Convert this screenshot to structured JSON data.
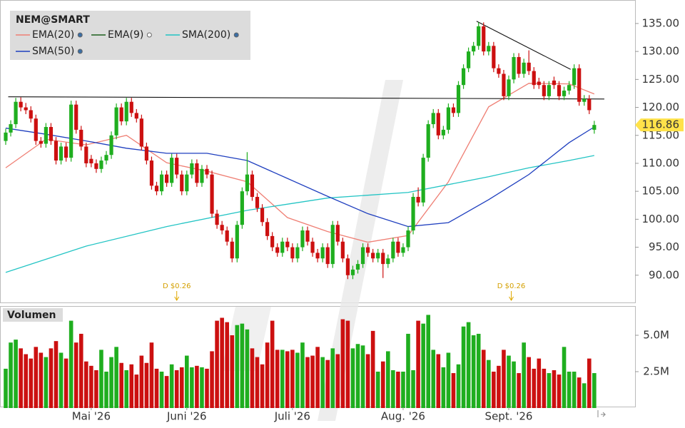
{
  "chart_data": {
    "type": "candlestick",
    "title": "NEM@SMART",
    "up_color": "#1fae1f",
    "down_color": "#cc1010",
    "ylim": [
      85,
      139.2
    ],
    "yticks": [
      {
        "value": 90,
        "label": "90.00"
      },
      {
        "value": 95,
        "label": "95.00"
      },
      {
        "value": 100,
        "label": "100.00"
      },
      {
        "value": 105,
        "label": "105.00"
      },
      {
        "value": 110,
        "label": "110.00"
      },
      {
        "value": 115,
        "label": "115.00"
      },
      {
        "value": 120,
        "label": "120.00"
      },
      {
        "value": 125,
        "label": "125.00"
      },
      {
        "value": 130,
        "label": "130.00"
      },
      {
        "value": 135,
        "label": "135.00"
      }
    ],
    "xlim": [
      -1.1,
      125
    ],
    "xticks": [
      {
        "value": 17,
        "label": "Mai '26"
      },
      {
        "value": 36,
        "label": "Juni '26"
      },
      {
        "value": 57,
        "label": "Juli '26"
      },
      {
        "value": 79,
        "label": "Aug. '26"
      },
      {
        "value": 100,
        "label": "Sept. '26"
      }
    ],
    "last_price": {
      "value": 116.86,
      "label": "116.86"
    },
    "ohlc": [
      [
        114,
        116.2,
        113.3,
        115.5
      ],
      [
        115.5,
        117.7,
        114.8,
        117
      ],
      [
        117,
        121.7,
        116.3,
        121
      ],
      [
        121,
        121.8,
        119.3,
        120
      ],
      [
        120,
        120.8,
        118.8,
        119.5
      ],
      [
        119.5,
        120.2,
        117.3,
        118
      ],
      [
        118,
        118.7,
        113.3,
        114
      ],
      [
        114,
        114.7,
        112.8,
        113.5
      ],
      [
        113.5,
        117.2,
        112.8,
        116.5
      ],
      [
        116.5,
        117.2,
        113.3,
        114
      ],
      [
        114,
        114.7,
        109.8,
        110.5
      ],
      [
        110.5,
        113.7,
        109.8,
        113
      ],
      [
        113,
        113.7,
        110.3,
        111
      ],
      [
        111,
        121.2,
        110.3,
        120.5
      ],
      [
        120.5,
        121.2,
        115.3,
        116
      ],
      [
        116,
        116.7,
        112.3,
        113
      ],
      [
        113,
        113.7,
        109.3,
        110
      ],
      [
        110.8,
        111.5,
        109.3,
        110
      ],
      [
        110,
        110.7,
        108.3,
        109
      ],
      [
        109,
        111.2,
        108.3,
        110.5
      ],
      [
        110.5,
        112.2,
        109.8,
        111.5
      ],
      [
        111.5,
        115.7,
        110.8,
        115
      ],
      [
        115,
        120.7,
        114.3,
        120
      ],
      [
        120,
        120.7,
        116.8,
        117.5
      ],
      [
        117.5,
        121.7,
        116.8,
        121
      ],
      [
        121,
        121.7,
        118.3,
        119
      ],
      [
        119,
        119.7,
        117.3,
        118
      ],
      [
        118,
        118.7,
        112.3,
        113
      ],
      [
        113,
        113.7,
        109.8,
        110.5
      ],
      [
        110.5,
        111.2,
        105.3,
        106
      ],
      [
        106,
        106.7,
        104.3,
        105
      ],
      [
        105,
        108.7,
        104.3,
        108
      ],
      [
        108,
        108.7,
        105.8,
        106.5
      ],
      [
        106.5,
        111.7,
        105.8,
        111
      ],
      [
        111,
        111.7,
        107.3,
        108
      ],
      [
        108,
        108.7,
        104.3,
        105
      ],
      [
        105,
        108.7,
        104.3,
        108
      ],
      [
        108,
        110.7,
        107.3,
        110
      ],
      [
        110,
        110.7,
        105.8,
        106.5
      ],
      [
        106.5,
        109.7,
        105.8,
        109
      ],
      [
        109,
        109.7,
        107.3,
        108
      ],
      [
        108,
        108.7,
        100.3,
        101
      ],
      [
        101,
        101.7,
        98.3,
        99
      ],
      [
        99,
        99.7,
        97.3,
        98
      ],
      [
        98,
        98.7,
        95.3,
        96
      ],
      [
        96,
        96.7,
        92.3,
        93
      ],
      [
        93,
        99.7,
        92.3,
        99
      ],
      [
        99,
        105.7,
        98.3,
        105
      ],
      [
        105,
        112,
        104.3,
        108
      ],
      [
        108,
        108.7,
        103.3,
        104
      ],
      [
        104,
        104.7,
        101.3,
        102
      ],
      [
        102,
        102.7,
        98.8,
        99.5
      ],
      [
        99.5,
        100.2,
        96.3,
        97
      ],
      [
        97,
        97.7,
        94.3,
        95
      ],
      [
        95,
        95.7,
        93.3,
        94
      ],
      [
        94,
        96.7,
        93.3,
        96
      ],
      [
        96,
        96.7,
        94.3,
        95
      ],
      [
        95,
        95.7,
        92.3,
        93
      ],
      [
        93,
        95.7,
        92.3,
        95
      ],
      [
        95,
        98.7,
        94.3,
        98
      ],
      [
        98,
        98.7,
        95.3,
        96
      ],
      [
        96,
        96.7,
        93.3,
        94
      ],
      [
        94,
        94.7,
        92.3,
        93
      ],
      [
        93,
        95.7,
        92.3,
        95
      ],
      [
        95,
        95.7,
        91.3,
        92
      ],
      [
        92,
        99.7,
        91.3,
        99
      ],
      [
        99,
        99.7,
        95.3,
        96
      ],
      [
        96,
        96.7,
        92.3,
        93
      ],
      [
        93,
        93.7,
        89.3,
        90
      ],
      [
        90,
        91.7,
        89.3,
        91
      ],
      [
        91,
        92.7,
        90.3,
        92
      ],
      [
        92,
        95.7,
        91.3,
        95
      ],
      [
        95,
        95.7,
        93.3,
        94
      ],
      [
        94,
        94.7,
        92.3,
        93
      ],
      [
        93,
        94.7,
        92.3,
        94
      ],
      [
        94,
        94.7,
        89.5,
        92
      ],
      [
        92,
        93.7,
        91.3,
        93
      ],
      [
        93,
        96.7,
        92.3,
        96
      ],
      [
        96,
        96.7,
        93.3,
        94
      ],
      [
        94,
        95.7,
        93.3,
        95
      ],
      [
        95,
        98.7,
        94.3,
        98
      ],
      [
        98,
        104.7,
        97.3,
        104
      ],
      [
        104,
        105.7,
        102.3,
        103
      ],
      [
        103,
        111.7,
        102.3,
        111
      ],
      [
        111,
        117.7,
        110.3,
        117
      ],
      [
        117,
        119.7,
        116.3,
        119
      ],
      [
        119,
        119.7,
        114.3,
        115
      ],
      [
        115,
        116.7,
        114.3,
        116
      ],
      [
        116,
        120.7,
        115.3,
        120
      ],
      [
        120,
        120.7,
        118.3,
        119
      ],
      [
        119,
        124.7,
        118.3,
        124
      ],
      [
        124,
        127.7,
        123.3,
        127
      ],
      [
        127,
        130.7,
        126.3,
        130
      ],
      [
        130,
        131.7,
        129.3,
        131
      ],
      [
        131,
        135.2,
        130.3,
        134.5
      ],
      [
        134.5,
        135.2,
        129.3,
        130
      ],
      [
        130,
        131.7,
        129.3,
        131
      ],
      [
        131,
        131.7,
        126.3,
        127
      ],
      [
        127,
        127.7,
        125.3,
        126
      ],
      [
        126,
        126.7,
        121.3,
        122
      ],
      [
        122,
        125.7,
        121.3,
        125
      ],
      [
        125,
        129.7,
        124.3,
        129
      ],
      [
        129,
        129.7,
        125.3,
        126
      ],
      [
        126,
        128.7,
        125.3,
        128
      ],
      [
        128,
        130.2,
        125.8,
        126.5
      ],
      [
        126.5,
        127.2,
        123.3,
        124
      ],
      [
        124.6,
        125.3,
        123.3,
        124
      ],
      [
        124,
        124.7,
        121.3,
        122
      ],
      [
        122,
        124.7,
        121.3,
        124
      ],
      [
        124.8,
        125.5,
        123.3,
        124
      ],
      [
        124,
        124.7,
        121.3,
        122
      ],
      [
        122,
        123.7,
        121.3,
        123
      ],
      [
        123,
        124.7,
        122.3,
        124
      ],
      [
        124,
        127.7,
        123.3,
        127
      ],
      [
        127,
        127.7,
        120.3,
        121
      ],
      [
        121,
        122.2,
        120.3,
        121.5
      ],
      [
        121.5,
        122.2,
        118.8,
        119.5
      ],
      [
        116,
        117.6,
        115.3,
        116.86
      ]
    ],
    "indicators": [
      {
        "name": "EMA(20)",
        "color": "#ef7f74",
        "x": [
          0,
          8,
          16,
          24,
          32,
          40,
          48,
          56,
          64,
          72,
          80,
          88,
          96,
          104,
          112,
          117
        ],
        "values": [
          109.2,
          114.3,
          113.3,
          115,
          110.1,
          108.6,
          106.7,
          100.3,
          97.8,
          95.9,
          97.1,
          106.7,
          120.1,
          124.3,
          124.2,
          122.4
        ]
      },
      {
        "name": "EMA(9)",
        "color": "#1d5e1d",
        "visible": false
      },
      {
        "name": "SMA(200)",
        "color": "#22c4c4",
        "x": [
          0,
          16,
          32,
          48,
          64,
          80,
          96,
          104,
          112,
          117
        ],
        "values": [
          90.5,
          95.2,
          98.7,
          101.6,
          103.8,
          104.8,
          107.6,
          109.2,
          110.5,
          111.4
        ]
      },
      {
        "name": "SMA(50)",
        "color": "#1f3fbf",
        "x": [
          0,
          8,
          16,
          24,
          32,
          40,
          48,
          56,
          64,
          72,
          80,
          88,
          96,
          104,
          112,
          117
        ],
        "values": [
          116.3,
          115.2,
          114,
          112.7,
          111.8,
          111.8,
          110.5,
          107.3,
          104.1,
          101,
          98.7,
          99.4,
          103.5,
          108,
          113.7,
          116.5
        ]
      }
    ],
    "trendlines": [
      {
        "x": [
          0.5,
          119
        ],
        "values": [
          121.9,
          121.5
        ]
      },
      {
        "x": [
          93.6,
          112.3
        ],
        "values": [
          135.4,
          126.8
        ]
      }
    ],
    "dividends": [
      {
        "x": 34,
        "label": "D $0.26"
      },
      {
        "x": 100.5,
        "label": "D $0.26"
      }
    ],
    "volume": {
      "title": "Volumen",
      "ylim": [
        0,
        6.96
      ],
      "yticks": [
        {
          "value": 2.5,
          "label": "2.5M"
        },
        {
          "value": 5,
          "label": "5.0M"
        }
      ],
      "values": [
        2.7,
        4.5,
        4.7,
        4.1,
        3.7,
        3.4,
        4.2,
        3.8,
        3.5,
        4.1,
        4.6,
        3.8,
        3.4,
        6.0,
        4.5,
        5.1,
        3.2,
        2.9,
        2.6,
        4.0,
        2.5,
        3.5,
        4.2,
        3.1,
        2.6,
        3.0,
        2.3,
        3.6,
        3.1,
        4.5,
        2.7,
        2.5,
        2.2,
        3.0,
        2.6,
        2.8,
        3.6,
        2.8,
        2.9,
        2.8,
        2.7,
        3.9,
        6.0,
        6.2,
        5.9,
        5.0,
        5.7,
        5.8,
        5.4,
        4.1,
        3.5,
        3.0,
        4.5,
        6.0,
        4.0,
        4.0,
        3.9,
        4.0,
        3.8,
        4.5,
        3.5,
        3.6,
        4.2,
        3.5,
        3.3,
        4.1,
        3.7,
        6.1,
        6.0,
        4.1,
        4.4,
        4.3,
        3.7,
        5.3,
        2.5,
        3.2,
        3.9,
        2.6,
        2.5,
        2.5,
        5.1,
        2.6,
        6.0,
        5.8,
        6.4,
        4.0,
        3.7,
        2.8,
        3.8,
        2.4,
        3.0,
        5.6,
        5.9,
        5.0,
        5.1,
        4.0,
        3.3,
        2.5,
        2.9,
        4.0,
        3.6,
        3.2,
        2.4,
        4.5,
        3.5,
        2.7,
        3.4,
        2.7,
        2.4,
        2.6,
        2.3,
        4.2,
        2.5,
        2.5,
        2.1,
        1.7,
        3.4,
        2.4
      ]
    }
  }
}
